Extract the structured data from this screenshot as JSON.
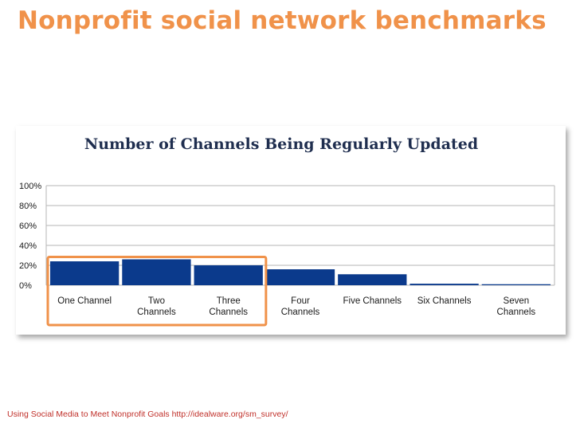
{
  "slide": {
    "title": "Nonprofit social network benchmarks",
    "source": "Using Social Media to Meet Nonprofit Goals http://idealware.org/sm_survey/"
  },
  "colors": {
    "title": "#F0924A",
    "highlight": "#F0924A",
    "bar": "#0B3A8C",
    "chart_title": "#1F2E4F",
    "grid": "#B5B5B5",
    "text": "#1A1A1A",
    "source": "#C0302A"
  },
  "chart_data": {
    "type": "bar",
    "title": "Number of Channels Being Regularly Updated",
    "categories": [
      [
        "One Channel"
      ],
      [
        "Two",
        "Channels"
      ],
      [
        "Three",
        "Channels"
      ],
      [
        "Four",
        "Channels"
      ],
      [
        "Five Channels"
      ],
      [
        "Six Channels"
      ],
      [
        "Seven",
        "Channels"
      ]
    ],
    "values": [
      24,
      26,
      20,
      16,
      11,
      1.5,
      1
    ],
    "ylim": [
      0,
      100
    ],
    "yticks": [
      "0%",
      "20%",
      "40%",
      "60%",
      "80%",
      "100%"
    ],
    "ytick_values": [
      0,
      20,
      40,
      60,
      80,
      100
    ],
    "grid": true,
    "highlighted_categories": [
      "One Channel",
      "Two Channels",
      "Three Channels"
    ]
  }
}
